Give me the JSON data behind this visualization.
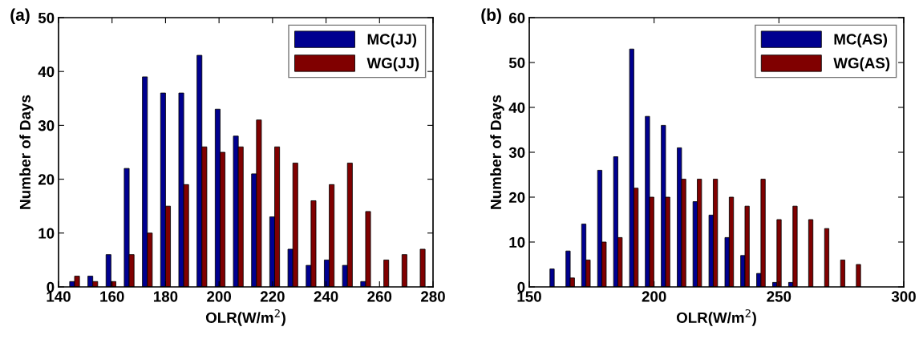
{
  "chart_data": [
    {
      "type": "bar",
      "title": "(a)",
      "xlabel": "OLR(W/m$^{2}$)",
      "ylabel": "Number of Days",
      "x": [
        146.0,
        152.8,
        159.6,
        166.4,
        173.2,
        180.0,
        186.8,
        193.6,
        200.4,
        207.2,
        214.0,
        220.8,
        227.6,
        234.4,
        241.2,
        248.0,
        254.8,
        261.6,
        268.4,
        275.2
      ],
      "series": [
        {
          "name": "MC(JJ)",
          "color": "#000090",
          "values": [
            1,
            2,
            6,
            22,
            39,
            36,
            36,
            43,
            33,
            28,
            21,
            13,
            7,
            4,
            5,
            4,
            1,
            null,
            null,
            null
          ]
        },
        {
          "name": "WG(JJ)",
          "color": "#800000",
          "values": [
            2,
            1,
            1,
            6,
            10,
            15,
            19,
            26,
            25,
            26,
            31,
            26,
            23,
            16,
            19,
            23,
            14,
            5,
            6,
            7
          ]
        }
      ],
      "xlim": [
        140,
        280
      ],
      "xticks": [
        140,
        160,
        180,
        200,
        220,
        240,
        260,
        280
      ],
      "ylim": [
        0,
        50
      ],
      "yticks": [
        0,
        10,
        20,
        30,
        40,
        50
      ],
      "legend": "top right",
      "grid": false
    },
    {
      "type": "bar",
      "title": "(b)",
      "xlabel": "OLR(W/m$^{2}$)",
      "ylabel": "Number of Days",
      "x": [
        160.0,
        166.4,
        172.7,
        179.1,
        185.5,
        191.9,
        198.2,
        204.6,
        211.0,
        217.3,
        223.7,
        230.1,
        236.4,
        242.8,
        249.2,
        255.6,
        261.9,
        268.3,
        274.7,
        281.0
      ],
      "series": [
        {
          "name": "MC(AS)",
          "color": "#000090",
          "values": [
            4,
            8,
            14,
            26,
            29,
            53,
            38,
            36,
            31,
            19,
            16,
            11,
            7,
            3,
            1,
            1,
            null,
            null,
            null,
            null
          ]
        },
        {
          "name": "WG(AS)",
          "color": "#800000",
          "values": [
            null,
            2,
            6,
            10,
            11,
            22,
            20,
            20,
            24,
            24,
            24,
            20,
            18,
            24,
            15,
            18,
            15,
            13,
            6,
            5
          ]
        }
      ],
      "xlim": [
        150,
        300
      ],
      "xticks": [
        150,
        200,
        250,
        300
      ],
      "ylim": [
        0,
        60
      ],
      "yticks": [
        0,
        10,
        20,
        30,
        40,
        50,
        60
      ],
      "legend": "top right",
      "grid": false
    }
  ]
}
